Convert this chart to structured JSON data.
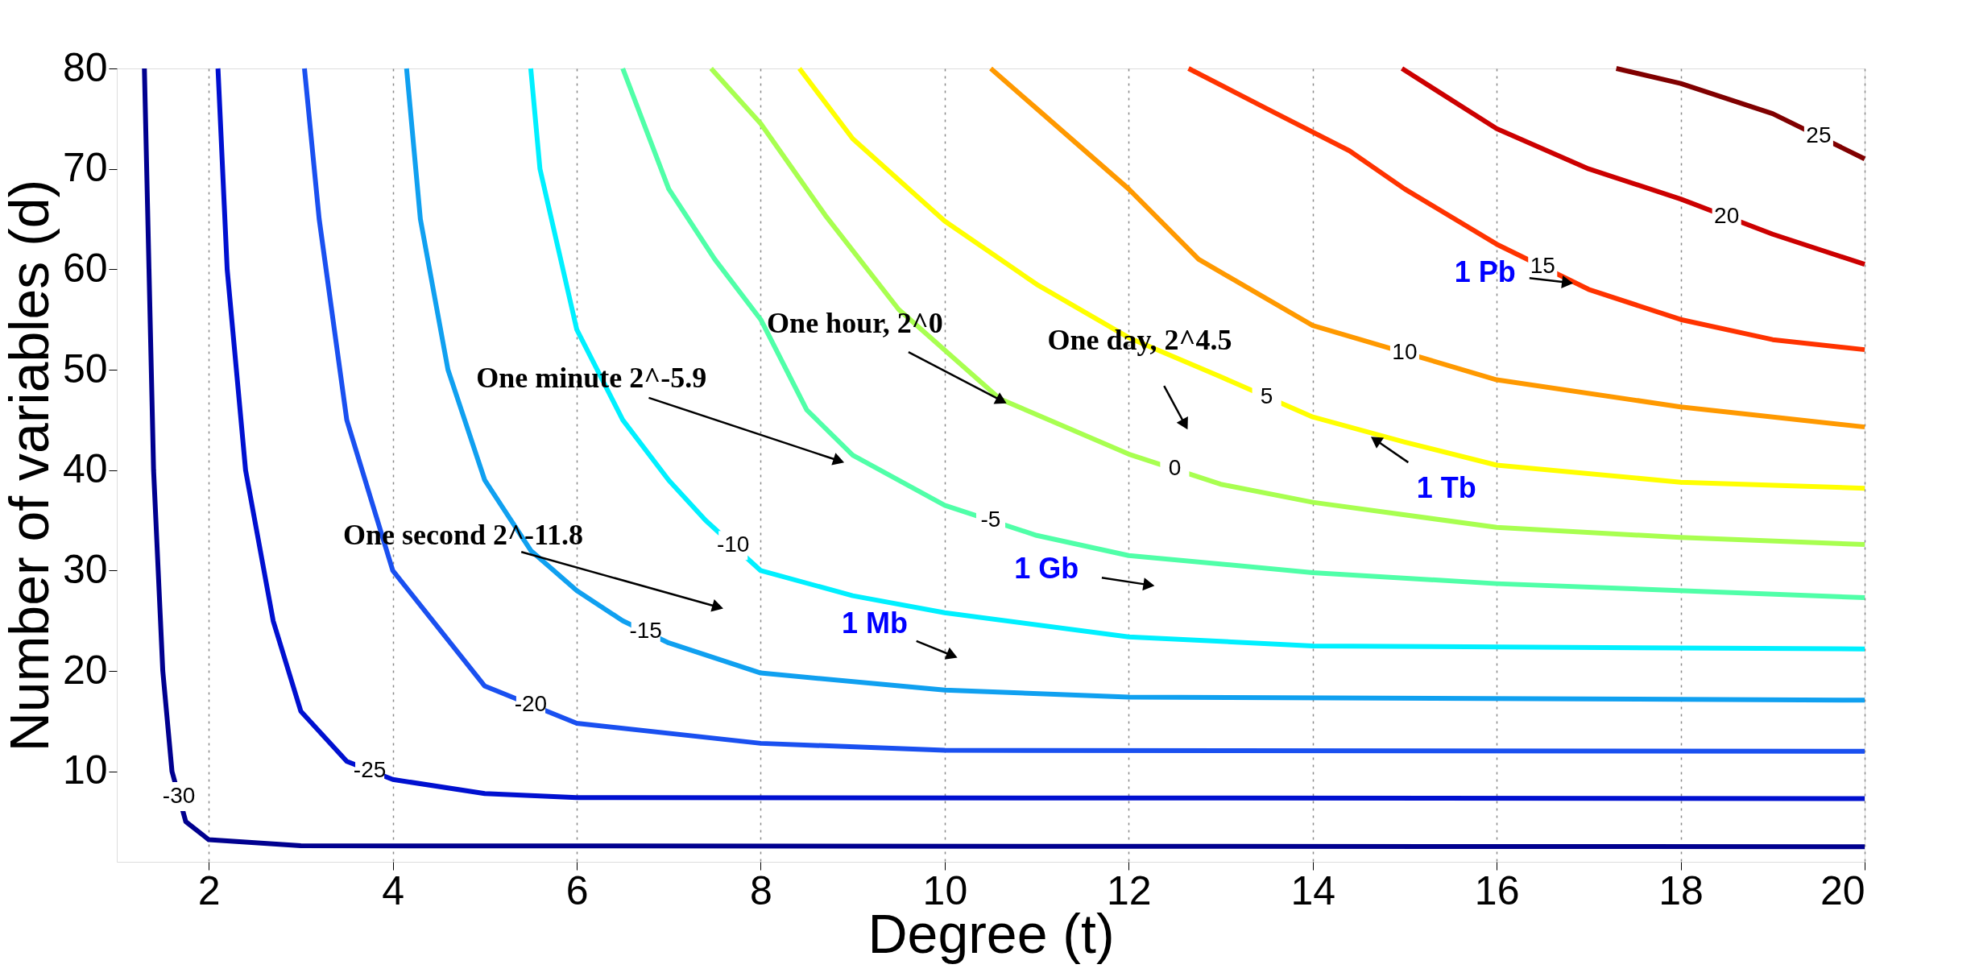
{
  "chart_data": {
    "type": "line",
    "xlabel": "Degree (t)",
    "ylabel": "Number of variables (d)",
    "xlim": [
      1,
      20
    ],
    "ylim": [
      1,
      80
    ],
    "xticks": [
      2,
      4,
      6,
      8,
      10,
      12,
      14,
      16,
      18,
      20
    ],
    "yticks": [
      10,
      20,
      30,
      40,
      50,
      60,
      70,
      80
    ],
    "grid": "x",
    "marker": "none",
    "line_style": "solid",
    "series": [
      {
        "name": "-30",
        "color": "#00008f",
        "x": [
          1.3,
          1.35,
          1.4,
          1.5,
          1.6,
          1.75,
          2,
          3,
          20
        ],
        "values": [
          80,
          60,
          40,
          20,
          10,
          5,
          3.2,
          2.6,
          2.5
        ]
      },
      {
        "name": "-25",
        "color": "#0010d0",
        "x": [
          2.1,
          2.2,
          2.4,
          2.7,
          3,
          3.5,
          4,
          5,
          6,
          20
        ],
        "values": [
          80,
          60,
          40,
          25,
          16,
          11,
          9.2,
          7.8,
          7.4,
          7.3
        ]
      },
      {
        "name": "-20",
        "color": "#1a50f0",
        "x": [
          3.04,
          3.2,
          3.5,
          4,
          5,
          6,
          8,
          10,
          20
        ],
        "values": [
          80,
          65,
          45,
          30,
          18.5,
          14.8,
          12.8,
          12.1,
          12
        ]
      },
      {
        "name": "-15",
        "color": "#10a0f0",
        "x": [
          4.15,
          4.3,
          4.6,
          5,
          5.5,
          6,
          6.5,
          7,
          8,
          10,
          12,
          20
        ],
        "values": [
          80,
          65,
          50,
          39,
          32,
          28,
          25,
          22.8,
          19.8,
          18.1,
          17.4,
          17.1
        ]
      },
      {
        "name": "-10",
        "color": "#00f0ff",
        "x": [
          5.5,
          5.6,
          5.8,
          6,
          6.5,
          7,
          7.4,
          8,
          9,
          10,
          12,
          14,
          20
        ],
        "values": [
          80,
          70,
          62,
          54,
          45,
          39,
          35,
          30,
          27.5,
          25.8,
          23.4,
          22.5,
          22.2
        ]
      },
      {
        "name": "-5",
        "color": "#50ffa8",
        "x": [
          6.5,
          7,
          7.5,
          8,
          8.5,
          9,
          10,
          11,
          12,
          14,
          16,
          20
        ],
        "values": [
          80,
          68,
          61,
          55,
          46,
          41.5,
          36.5,
          33.5,
          31.5,
          29.8,
          28.7,
          27.3
        ]
      },
      {
        "name": "0",
        "color": "#a8ff50",
        "x": [
          7.46,
          8,
          8.7,
          9.5,
          10.6,
          12,
          13,
          14,
          16,
          18,
          20
        ],
        "values": [
          80,
          74.5,
          65.4,
          56,
          47.1,
          41.6,
          38.6,
          36.8,
          34.3,
          33.3,
          32.6
        ]
      },
      {
        "name": "5",
        "color": "#ffff00",
        "x": [
          8.42,
          9,
          10,
          11,
          12,
          13,
          14,
          15,
          16,
          18,
          20
        ],
        "values": [
          80,
          73,
          64.8,
          58.5,
          53.2,
          49.3,
          45.3,
          42.8,
          40.5,
          38.8,
          38.2
        ]
      },
      {
        "name": "10",
        "color": "#ff9900",
        "x": [
          10.5,
          11,
          12,
          12.76,
          14,
          16,
          18,
          20
        ],
        "values": [
          80,
          76,
          68,
          61,
          54.4,
          49,
          46.3,
          44.3
        ]
      },
      {
        "name": "15",
        "color": "#ff3300",
        "x": [
          12.65,
          13.5,
          14.4,
          15,
          16,
          17,
          18,
          19,
          20
        ],
        "values": [
          80,
          76,
          71.8,
          68,
          62.5,
          58,
          55,
          53,
          52
        ]
      },
      {
        "name": "20",
        "color": "#cc0000",
        "x": [
          14.97,
          16,
          17,
          18,
          19,
          20
        ],
        "values": [
          80,
          74,
          70,
          67,
          63.5,
          60.5
        ]
      },
      {
        "name": "25",
        "color": "#800000",
        "x": [
          17.3,
          18,
          19,
          20
        ],
        "values": [
          80,
          78.5,
          75.5,
          71
        ]
      }
    ],
    "annotations": [
      "One second 2^-11.8",
      {
        "text": "One minute 2^-5.9",
        "x": 8.83,
        "y": 41
      },
      {
        "text": "One hour, 2^0",
        "x": 10.6,
        "y": 47
      },
      "One day, 2^4.5",
      {
        "text": "1 Tb",
        "x": 14.7,
        "y": 42.9
      },
      {
        "text": "1 Gb",
        "x": 12.2,
        "y": 28.6
      },
      "1 Mb",
      {
        "text": "1 Pb",
        "x": 16.75,
        "y": 58.7
      }
    ]
  }
}
